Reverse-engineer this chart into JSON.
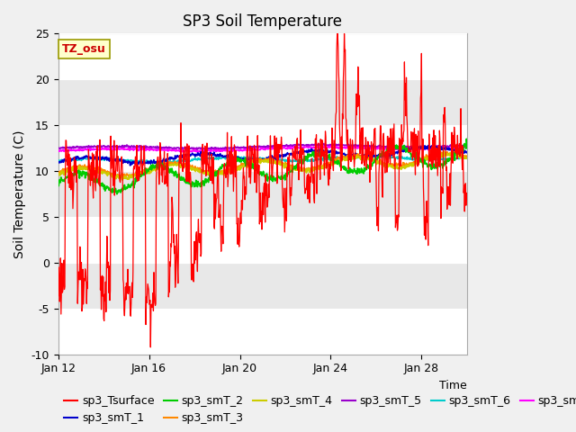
{
  "title": "SP3 Soil Temperature",
  "xlabel": "Time",
  "ylabel": "Soil Temperature (C)",
  "ylim": [
    -10,
    25
  ],
  "yticks": [
    -10,
    -5,
    0,
    5,
    10,
    15,
    20,
    25
  ],
  "xlim_days": [
    0,
    18
  ],
  "xtick_positions": [
    0,
    4,
    8,
    12,
    16
  ],
  "xtick_labels": [
    "Jan 12",
    "Jan 16",
    "Jan 20",
    "Jan 24",
    "Jan 28"
  ],
  "annotation_text": "TZ_osu",
  "series_colors": {
    "sp3_Tsurface": "#ff0000",
    "sp3_smT_1": "#0000cc",
    "sp3_smT_2": "#00cc00",
    "sp3_smT_3": "#ff8800",
    "sp3_smT_4": "#cccc00",
    "sp3_smT_5": "#9900cc",
    "sp3_smT_6": "#00cccc",
    "sp3_smT_7": "#ff00ff"
  },
  "plot_bg": "#ffffff",
  "fig_bg": "#f0f0f0",
  "band_color": "#e8e8e8",
  "title_fontsize": 12,
  "axis_fontsize": 10,
  "tick_fontsize": 9,
  "legend_fontsize": 9
}
